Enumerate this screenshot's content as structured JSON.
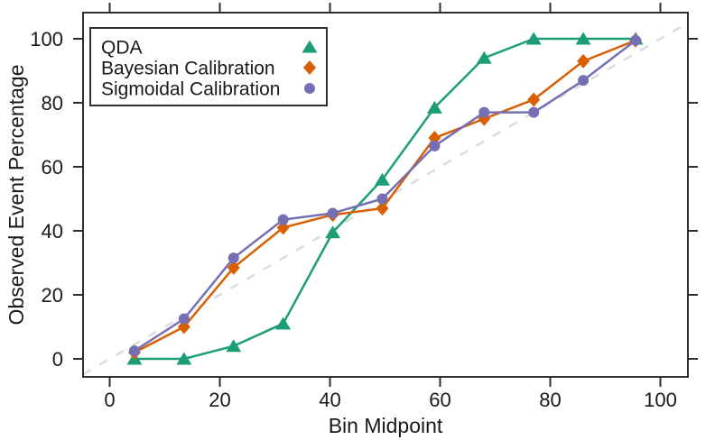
{
  "chart_data": {
    "type": "line",
    "title": "",
    "xlabel": "Bin Midpoint",
    "ylabel": "Observed Event Percentage",
    "xlim": [
      -5,
      105
    ],
    "ylim": [
      -6,
      108
    ],
    "xticks": [
      0,
      20,
      40,
      60,
      80,
      100
    ],
    "yticks": [
      0,
      20,
      40,
      60,
      80,
      100
    ],
    "grid": false,
    "legend_position": "top-left",
    "axis_color": "#2e2e2e",
    "reference_line": {
      "type": "diagonal-dashed",
      "from": [
        0,
        0
      ],
      "to": [
        100,
        100
      ],
      "color": "#dcdcdc"
    },
    "x": [
      4.5,
      13.5,
      22.5,
      31.5,
      40.5,
      49.5,
      59,
      68,
      77,
      86,
      95.5
    ],
    "series": [
      {
        "name": "QDA",
        "marker": "triangle",
        "color": "#1b9e77",
        "values": [
          0,
          0,
          4,
          11,
          39.5,
          56,
          78.5,
          94,
          100,
          100,
          100
        ]
      },
      {
        "name": "Bayesian Calibration",
        "marker": "diamond",
        "color": "#d95f02",
        "values": [
          2,
          10,
          28.5,
          41,
          45,
          47,
          69,
          75,
          81,
          93,
          99.5
        ]
      },
      {
        "name": "Sigmoidal Calibration",
        "marker": "circle",
        "color": "#7570b3",
        "values": [
          2.5,
          12.5,
          31.5,
          43.5,
          45.5,
          50,
          66.5,
          77,
          77,
          87,
          99.5
        ]
      }
    ]
  }
}
